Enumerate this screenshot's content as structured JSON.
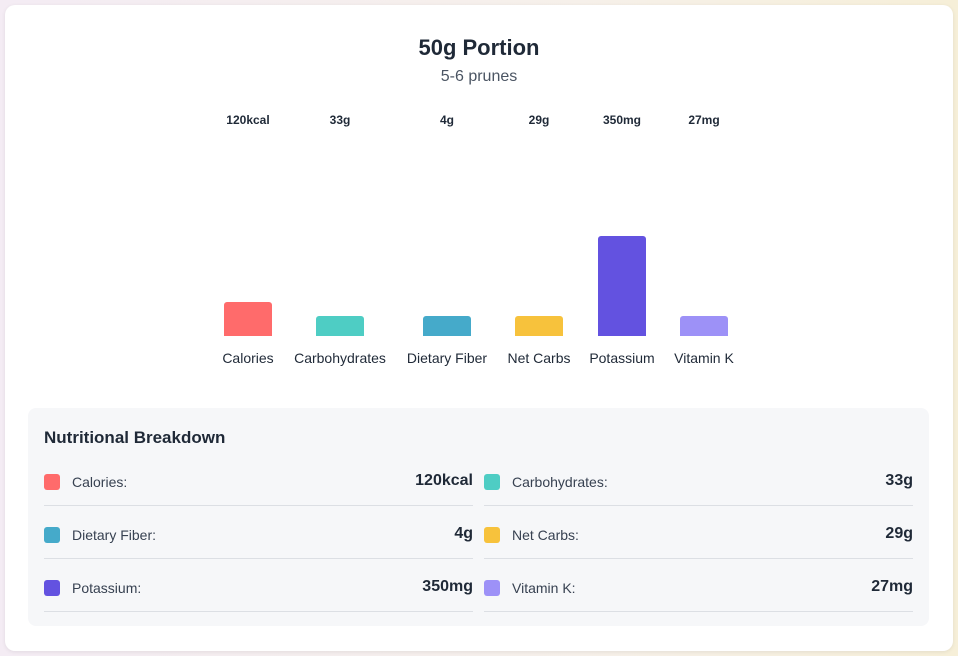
{
  "title": "50g Portion",
  "subtitle": "5-6 prunes",
  "chart_data": {
    "type": "bar",
    "title": "50g Portion",
    "subtitle": "5-6 prunes",
    "categories": [
      "Calories",
      "Carbohydrates",
      "Dietary Fiber",
      "Net Carbs",
      "Potassium",
      "Vitamin K"
    ],
    "values": [
      120,
      33,
      4,
      29,
      350,
      27
    ],
    "value_labels": [
      "120kcal",
      "33g",
      "4g",
      "29g",
      "350mg",
      "27mg"
    ],
    "colors": [
      "#ff6b6b",
      "#4ecdc4",
      "#45aaca",
      "#f7c23c",
      "#6352e0",
      "#9d91f7"
    ],
    "legend": "none",
    "grid": false
  },
  "breakdown": {
    "title": "Nutritional Breakdown",
    "items": [
      {
        "label": "Calories:",
        "value": "120kcal",
        "color": "#ff6b6b"
      },
      {
        "label": "Carbohydrates:",
        "value": "33g",
        "color": "#4ecdc4"
      },
      {
        "label": "Dietary Fiber:",
        "value": "4g",
        "color": "#45aaca"
      },
      {
        "label": "Net Carbs:",
        "value": "29g",
        "color": "#f7c23c"
      },
      {
        "label": "Potassium:",
        "value": "350mg",
        "color": "#6352e0"
      },
      {
        "label": "Vitamin K:",
        "value": "27mg",
        "color": "#9d91f7"
      }
    ]
  }
}
